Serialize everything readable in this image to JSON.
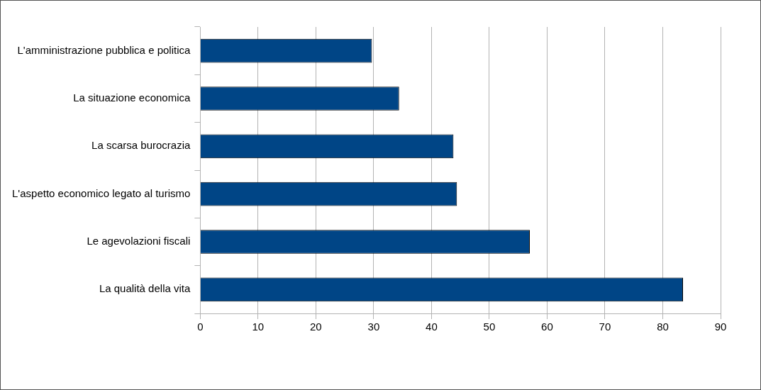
{
  "chart_data": {
    "type": "bar",
    "orientation": "horizontal",
    "categories": [
      "L'amministrazione pubblica e politica",
      "La situazione economica",
      "La scarsa burocrazia",
      "L'aspetto economico legato al turismo",
      "Le agevolazioni fiscali",
      "La qualità della vita"
    ],
    "values": [
      29.7,
      34.4,
      43.8,
      44.4,
      57.0,
      83.5
    ],
    "color": "#004586",
    "xlim": [
      0,
      90
    ],
    "xticks": [
      0,
      10,
      20,
      30,
      40,
      50,
      60,
      70,
      80,
      90
    ],
    "grid": "x",
    "legend": false
  }
}
